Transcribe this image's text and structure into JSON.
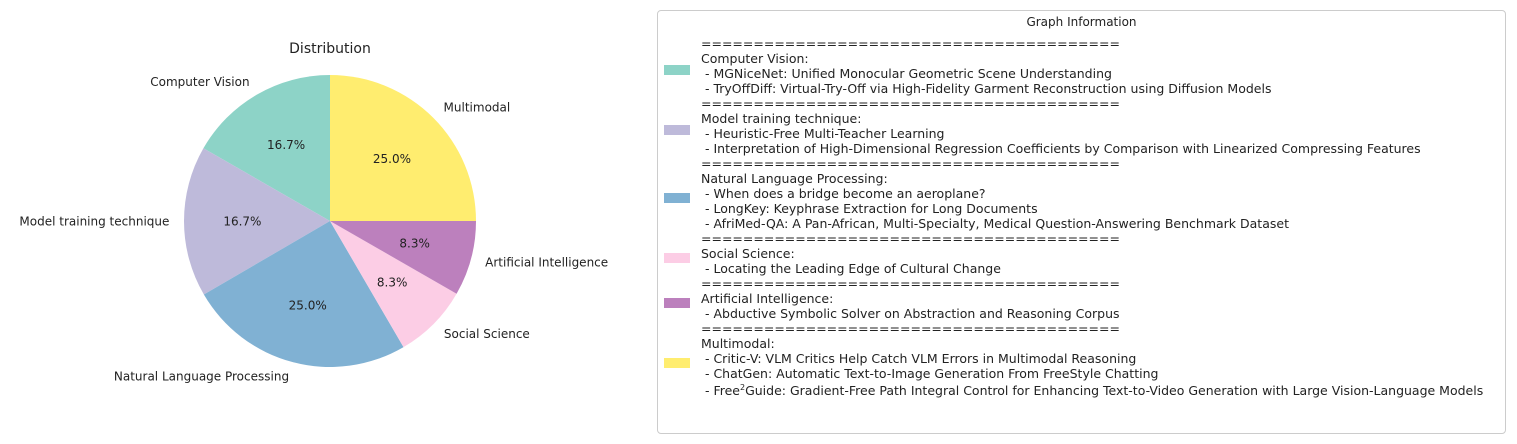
{
  "chart_data": {
    "type": "pie",
    "title": "Distribution",
    "slices": [
      {
        "label": "Computer Vision",
        "value": 16.7,
        "pct_label": "16.7%",
        "color": "#8dd3c7"
      },
      {
        "label": "Model training technique",
        "value": 16.7,
        "pct_label": "16.7%",
        "color": "#bebada"
      },
      {
        "label": "Natural Language Processing",
        "value": 25.0,
        "pct_label": "25.0%",
        "color": "#80b1d3"
      },
      {
        "label": "Social Science",
        "value": 8.3,
        "pct_label": "8.3%",
        "color": "#fccde5"
      },
      {
        "label": "Artificial Intelligence",
        "value": 8.3,
        "pct_label": "8.3%",
        "color": "#bc80bd"
      },
      {
        "label": "Multimodal",
        "value": 25.0,
        "pct_label": "25.0%",
        "color": "#ffed6f"
      }
    ]
  },
  "legend": {
    "title": "Graph Information",
    "separator": "========================================",
    "groups": [
      {
        "header": "Computer Vision:",
        "color": "#8dd3c7",
        "items": [
          " - MGNiceNet: Unified Monocular Geometric Scene Understanding",
          " - TryOffDiff: Virtual-Try-Off via High-Fidelity Garment Reconstruction using Diffusion Models"
        ]
      },
      {
        "header": "Model training technique:",
        "color": "#bebada",
        "items": [
          " - Heuristic-Free Multi-Teacher Learning",
          " - Interpretation of High-Dimensional Regression Coefficients by Comparison with Linearized Compressing Features"
        ]
      },
      {
        "header": "Natural Language Processing:",
        "color": "#80b1d3",
        "items": [
          " - When does a bridge become an aeroplane?",
          " - LongKey: Keyphrase Extraction for Long Documents",
          " - AfriMed-QA: A Pan-African, Multi-Specialty, Medical Question-Answering Benchmark Dataset"
        ]
      },
      {
        "header": "Social Science:",
        "color": "#fccde5",
        "items": [
          " - Locating the Leading Edge of Cultural Change"
        ]
      },
      {
        "header": "Artificial Intelligence:",
        "color": "#bc80bd",
        "items": [
          " - Abductive Symbolic Solver on Abstraction and Reasoning Corpus"
        ]
      },
      {
        "header": "Multimodal:",
        "color": "#ffed6f",
        "items": [
          " - Critic-V: VLM Critics Help Catch VLM Errors in Multimodal Reasoning",
          " - ChatGen: Automatic Text-to-Image Generation From FreeStyle Chatting"
        ],
        "special_item": {
          "prefix": " - Free",
          "sup": "2",
          "suffix": "Guide: Gradient-Free Path Integral Control for Enhancing Text-to-Video Generation with Large Vision-Language Models"
        }
      }
    ]
  }
}
